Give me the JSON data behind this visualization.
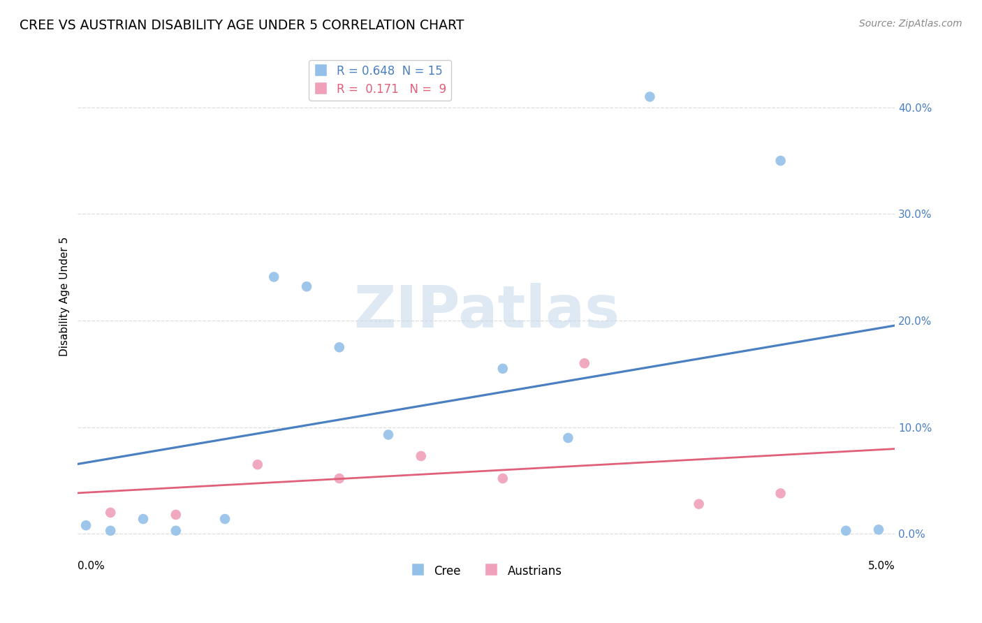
{
  "title": "CREE VS AUSTRIAN DISABILITY AGE UNDER 5 CORRELATION CHART",
  "source": "Source: ZipAtlas.com",
  "ylabel": "Disability Age Under 5",
  "x_label_bottom_left": "0.0%",
  "x_label_bottom_right": "5.0%",
  "xlim": [
    0.0,
    0.05
  ],
  "ylim": [
    -0.005,
    0.45
  ],
  "yticks": [
    0.0,
    0.1,
    0.2,
    0.3,
    0.4
  ],
  "ytick_labels": [
    "0.0%",
    "10.0%",
    "20.0%",
    "30.0%",
    "40.0%"
  ],
  "xticks": [
    0.0,
    0.01,
    0.02,
    0.03,
    0.04,
    0.05
  ],
  "background_color": "#ffffff",
  "grid_color": "#dddddd",
  "cree_color": "#92c0e8",
  "austrian_color": "#f0a0b8",
  "cree_line_color": "#4a7fc1",
  "austrian_line_color": "#e0607a",
  "legend_R_cree": "0.648",
  "legend_N_cree": "15",
  "legend_R_austrian": "0.171",
  "legend_N_austrian": "9",
  "cree_x": [
    0.0005,
    0.002,
    0.004,
    0.006,
    0.009,
    0.012,
    0.014,
    0.016,
    0.019,
    0.026,
    0.03,
    0.035,
    0.043,
    0.047,
    0.049
  ],
  "cree_y": [
    0.008,
    0.003,
    0.014,
    0.003,
    0.014,
    0.241,
    0.232,
    0.175,
    0.093,
    0.155,
    0.09,
    0.41,
    0.35,
    0.003,
    0.004
  ],
  "austrian_x": [
    0.002,
    0.006,
    0.011,
    0.016,
    0.021,
    0.026,
    0.031,
    0.038,
    0.043
  ],
  "austrian_y": [
    0.02,
    0.018,
    0.065,
    0.052,
    0.073,
    0.052,
    0.16,
    0.028,
    0.038
  ],
  "watermark_text": "ZIPatlas",
  "marker_size": 110
}
